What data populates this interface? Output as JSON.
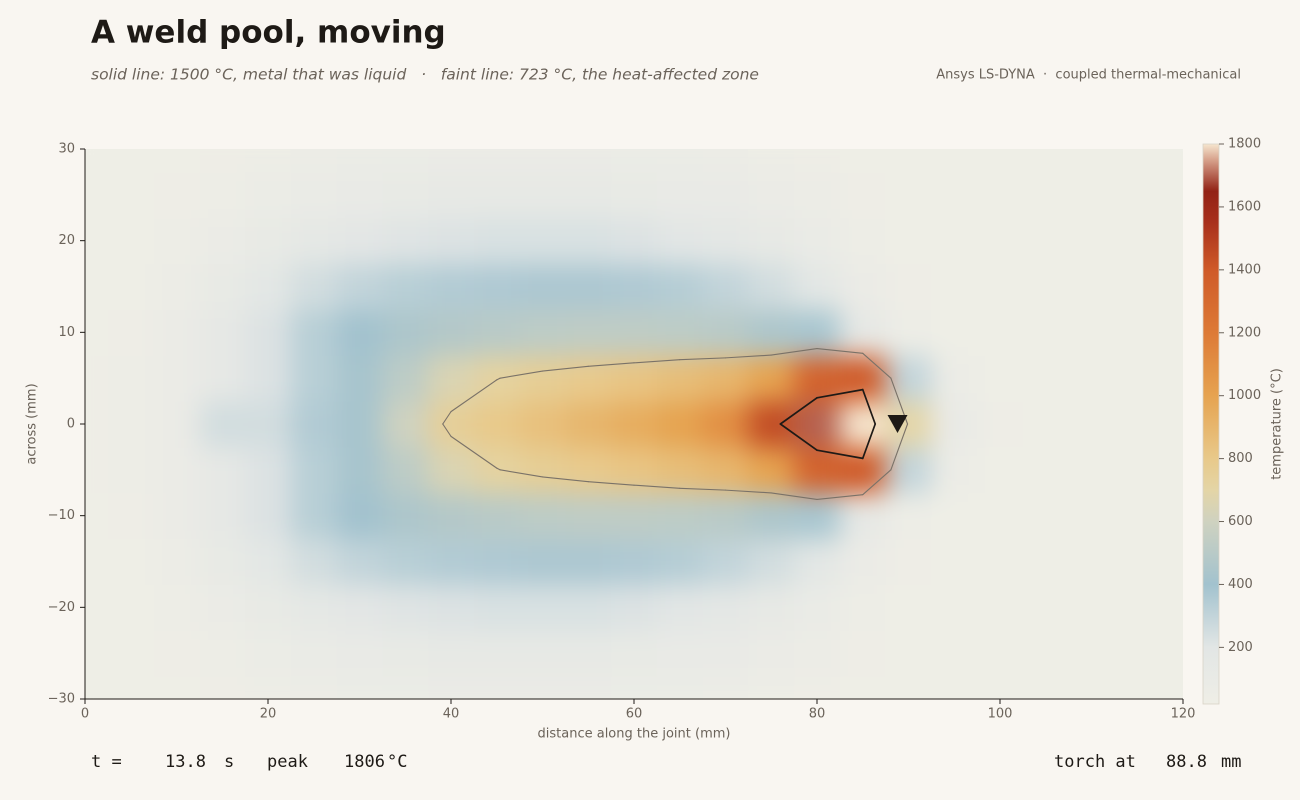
{
  "chart_data": {
    "type": "heatmap",
    "title": "A weld pool, moving",
    "subtitle": "solid line: 1500 °C, metal that was liquid   ·   faint line: 723 °C, the heat-affected zone",
    "source": "Ansys LS-DYNA  ·  coupled thermal-mechanical",
    "xlabel": "distance along the joint  (mm)",
    "ylabel": "across  (mm)",
    "colorbar_label": "temperature (°C)",
    "xlim": [
      0,
      120
    ],
    "xticks": [
      0,
      20,
      40,
      60,
      80,
      100,
      120
    ],
    "ylim": [
      -30,
      30
    ],
    "yticks": [
      {
        "value": -30,
        "label": "−30"
      },
      {
        "value": -20,
        "label": "−20"
      },
      {
        "value": -10,
        "label": "−10"
      },
      0,
      10,
      20,
      30
    ],
    "clim": [
      20,
      1800
    ],
    "cticks": [
      200,
      400,
      600,
      800,
      1000,
      1200,
      1400,
      1600,
      1800
    ],
    "colorscale": [
      [
        20,
        "#efeee6"
      ],
      [
        200,
        "#e2e6e5"
      ],
      [
        400,
        "#a2c2ce"
      ],
      [
        600,
        "#cfd2c0"
      ],
      [
        700,
        "#e4d5a6"
      ],
      [
        800,
        "#e8c98a"
      ],
      [
        1000,
        "#e6a350"
      ],
      [
        1200,
        "#dd7a36"
      ],
      [
        1400,
        "#cf5a28"
      ],
      [
        1550,
        "#a8301c"
      ],
      [
        1650,
        "#922215"
      ],
      [
        1750,
        "#d7a28c"
      ],
      [
        1800,
        "#f6e6cf"
      ]
    ],
    "x": [
      0,
      5,
      10,
      15,
      20,
      25,
      30,
      35,
      40,
      45,
      50,
      55,
      60,
      65,
      70,
      75,
      80,
      85,
      90,
      95,
      100,
      105,
      110,
      115,
      120
    ],
    "y": [
      -30,
      -25,
      -20,
      -15,
      -10,
      -5,
      0,
      5,
      10,
      15,
      20,
      25,
      30
    ],
    "z": [
      [
        30,
        30,
        30,
        40,
        50,
        60,
        70,
        75,
        80,
        80,
        80,
        80,
        75,
        70,
        60,
        50,
        40,
        30,
        30,
        30,
        30,
        30,
        30,
        30,
        30
      ],
      [
        30,
        30,
        40,
        50,
        70,
        90,
        110,
        120,
        130,
        130,
        130,
        130,
        120,
        110,
        100,
        80,
        60,
        40,
        30,
        30,
        30,
        30,
        30,
        30,
        30
      ],
      [
        30,
        30,
        50,
        80,
        120,
        160,
        190,
        210,
        220,
        230,
        230,
        230,
        220,
        200,
        170,
        130,
        90,
        50,
        30,
        30,
        30,
        30,
        30,
        30,
        30
      ],
      [
        30,
        30,
        60,
        120,
        180,
        250,
        300,
        330,
        350,
        360,
        370,
        370,
        360,
        340,
        300,
        250,
        180,
        80,
        40,
        30,
        30,
        30,
        30,
        30,
        30
      ],
      [
        30,
        40,
        80,
        150,
        220,
        330,
        400,
        450,
        480,
        500,
        520,
        530,
        530,
        520,
        500,
        450,
        380,
        150,
        50,
        30,
        30,
        30,
        30,
        30,
        30
      ],
      [
        40,
        50,
        80,
        150,
        220,
        330,
        420,
        520,
        650,
        720,
        760,
        790,
        820,
        860,
        900,
        1000,
        1350,
        1400,
        300,
        60,
        30,
        30,
        30,
        30,
        30
      ],
      [
        40,
        50,
        80,
        250,
        250,
        350,
        420,
        600,
        750,
        800,
        850,
        900,
        950,
        1000,
        1100,
        1450,
        1700,
        1800,
        700,
        100,
        40,
        30,
        30,
        30,
        30
      ],
      [
        40,
        50,
        80,
        150,
        220,
        330,
        420,
        520,
        650,
        720,
        760,
        790,
        820,
        860,
        900,
        1000,
        1350,
        1400,
        300,
        60,
        30,
        30,
        30,
        30,
        30
      ],
      [
        30,
        40,
        80,
        150,
        220,
        330,
        400,
        450,
        480,
        500,
        520,
        530,
        530,
        520,
        500,
        450,
        380,
        150,
        50,
        30,
        30,
        30,
        30,
        30,
        30
      ],
      [
        30,
        30,
        60,
        120,
        180,
        250,
        300,
        330,
        350,
        360,
        370,
        370,
        360,
        340,
        300,
        250,
        180,
        80,
        40,
        30,
        30,
        30,
        30,
        30,
        30
      ],
      [
        30,
        30,
        50,
        80,
        120,
        160,
        190,
        210,
        220,
        230,
        230,
        230,
        220,
        200,
        170,
        130,
        90,
        50,
        30,
        30,
        30,
        30,
        30,
        30,
        30
      ],
      [
        30,
        30,
        40,
        50,
        70,
        90,
        110,
        120,
        130,
        130,
        130,
        130,
        120,
        110,
        100,
        80,
        60,
        40,
        30,
        30,
        30,
        30,
        30,
        30,
        30
      ],
      [
        30,
        30,
        30,
        40,
        50,
        60,
        70,
        75,
        80,
        80,
        80,
        80,
        75,
        70,
        60,
        50,
        40,
        30,
        30,
        30,
        30,
        30,
        30,
        30,
        30
      ]
    ],
    "contours": [
      {
        "level": 1500,
        "color": "#1e1a16"
      },
      {
        "level": 723,
        "color": "#7a7268"
      }
    ],
    "torch": {
      "label": "torch at",
      "value": 88.8,
      "unit": "mm",
      "color": "#1f7a80"
    },
    "readout": {
      "time_label": "t =",
      "time": 13.8,
      "time_unit": "s",
      "peak_label": "peak",
      "peak": 1806,
      "peak_unit": "°C"
    }
  }
}
